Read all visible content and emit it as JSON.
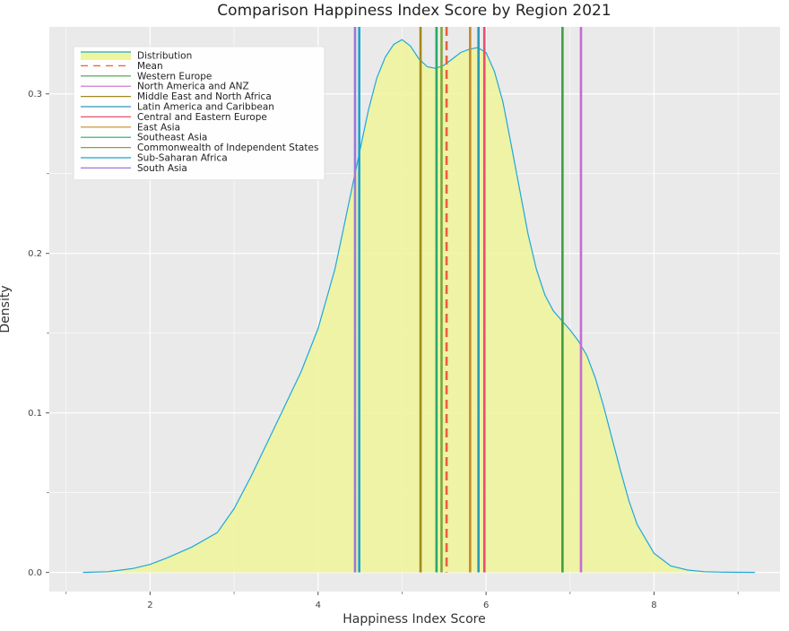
{
  "chart_data": {
    "type": "area",
    "title": "Comparison Happiness Index Score by Region 2021",
    "xlabel": "Happiness Index Score",
    "ylabel": "Density",
    "xlim": [
      0.8,
      9.5
    ],
    "ylim": [
      -0.012,
      0.342
    ],
    "xticks": [
      {
        "value": 2,
        "label": "2"
      },
      {
        "value": 4,
        "label": "4"
      },
      {
        "value": 6,
        "label": "6"
      },
      {
        "value": 8,
        "label": "8"
      }
    ],
    "yticks": [
      {
        "value": 0.0,
        "label": "0.0"
      },
      {
        "value": 0.1,
        "label": "0.1"
      },
      {
        "value": 0.2,
        "label": "0.2"
      },
      {
        "value": 0.3,
        "label": "0.3"
      }
    ],
    "grid": true,
    "legend_position": "top-left",
    "distribution": {
      "name": "Distribution",
      "line_color": "#1fa8d8",
      "fill_color": "#eef59a",
      "x": [
        1.2,
        1.5,
        1.8,
        2.0,
        2.2,
        2.5,
        2.8,
        3.0,
        3.2,
        3.4,
        3.6,
        3.8,
        4.0,
        4.2,
        4.3,
        4.4,
        4.5,
        4.6,
        4.7,
        4.8,
        4.9,
        5.0,
        5.1,
        5.2,
        5.3,
        5.4,
        5.5,
        5.6,
        5.7,
        5.8,
        5.9,
        6.0,
        6.1,
        6.2,
        6.3,
        6.4,
        6.5,
        6.6,
        6.7,
        6.8,
        6.9,
        7.0,
        7.1,
        7.2,
        7.3,
        7.4,
        7.5,
        7.6,
        7.7,
        7.8,
        8.0,
        8.2,
        8.4,
        8.6,
        8.8,
        9.0,
        9.2
      ],
      "y": [
        0.0,
        0.0005,
        0.0025,
        0.005,
        0.009,
        0.016,
        0.025,
        0.04,
        0.06,
        0.082,
        0.104,
        0.126,
        0.153,
        0.19,
        0.215,
        0.24,
        0.265,
        0.29,
        0.31,
        0.323,
        0.331,
        0.334,
        0.33,
        0.322,
        0.317,
        0.316,
        0.318,
        0.322,
        0.326,
        0.328,
        0.329,
        0.326,
        0.314,
        0.295,
        0.268,
        0.24,
        0.212,
        0.19,
        0.174,
        0.164,
        0.158,
        0.152,
        0.145,
        0.136,
        0.122,
        0.104,
        0.084,
        0.064,
        0.045,
        0.03,
        0.012,
        0.004,
        0.0015,
        0.0005,
        0.0002,
        0.0001,
        0.0
      ]
    },
    "mean": {
      "name": "Mean",
      "value": 5.53,
      "color": "#e8613a",
      "dashed": true
    },
    "regions": [
      {
        "name": "Western Europe",
        "value": 6.91,
        "color": "#3ea043"
      },
      {
        "name": "North America and ANZ",
        "value": 7.13,
        "color": "#c86ad0"
      },
      {
        "name": "Middle East and North Africa",
        "value": 5.22,
        "color": "#a08a1c"
      },
      {
        "name": "Latin America and Caribbean",
        "value": 5.91,
        "color": "#2a9bb8"
      },
      {
        "name": "Central and Eastern Europe",
        "value": 5.98,
        "color": "#e94d6d"
      },
      {
        "name": "East Asia",
        "value": 5.81,
        "color": "#c48a2a"
      },
      {
        "name": "Southeast Asia",
        "value": 5.41,
        "color": "#2aa86c"
      },
      {
        "name": "Commonwealth of Independent States",
        "value": 5.47,
        "color": "#7ea83a"
      },
      {
        "name": "Sub-Saharan Africa",
        "value": 4.49,
        "color": "#1ca4cc"
      },
      {
        "name": "South Asia",
        "value": 4.44,
        "color": "#9b78d8"
      }
    ]
  }
}
